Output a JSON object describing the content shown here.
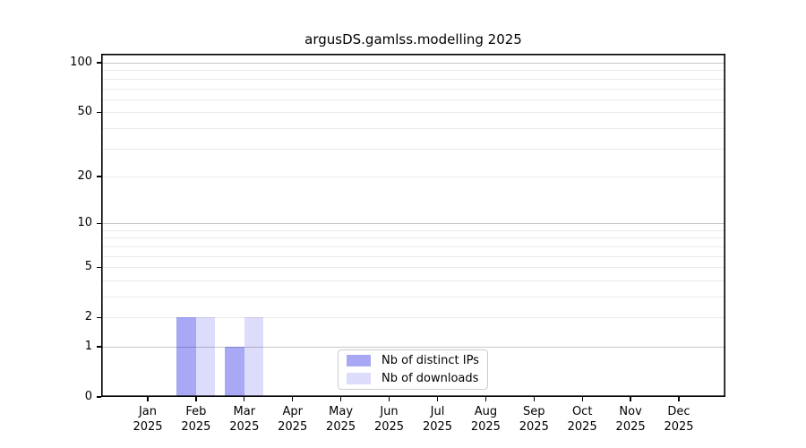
{
  "title": "argusDS.gamlss.modelling 2025",
  "legend": {
    "items": [
      {
        "label": "Nb of distinct IPs",
        "color": "rgba(0,0,224,0.34)"
      },
      {
        "label": "Nb of downloads",
        "color": "rgba(0,0,224,0.135)"
      }
    ]
  },
  "chart_data": {
    "type": "bar",
    "title": "argusDS.gamlss.modelling 2025",
    "categories": [
      "Jan",
      "Feb",
      "Mar",
      "Apr",
      "May",
      "Jun",
      "Jul",
      "Aug",
      "Sep",
      "Oct",
      "Nov",
      "Dec"
    ],
    "category_year": "2025",
    "series": [
      {
        "name": "Nb of distinct IPs",
        "color": "rgba(0,0,224,0.34)",
        "values": [
          0,
          2,
          1,
          0,
          0,
          0,
          0,
          0,
          0,
          0,
          0,
          0
        ]
      },
      {
        "name": "Nb of downloads",
        "color": "rgba(0,0,224,0.135)",
        "values": [
          0,
          2,
          2,
          0,
          0,
          0,
          0,
          0,
          0,
          0,
          0,
          0
        ]
      }
    ],
    "xlabel": "",
    "ylabel": "",
    "y_axis": {
      "scale": "log10(1+x)",
      "tick_values": [
        0,
        1,
        2,
        5,
        10,
        20,
        50,
        100
      ],
      "tick_labels": [
        "0",
        "1",
        "2",
        "5",
        "10",
        "20",
        "50",
        "100"
      ],
      "major_gridlines": [
        1,
        10,
        100
      ],
      "minor_gridlines": [
        2,
        3,
        4,
        5,
        6,
        7,
        8,
        9,
        20,
        30,
        40,
        50,
        60,
        70,
        80,
        90
      ],
      "range_min": 0,
      "range_max_label": 100
    },
    "grid": {
      "major_color": "#c6c6c6",
      "minor_color": "#eaeaea"
    },
    "legend_position": "bottom-center"
  }
}
